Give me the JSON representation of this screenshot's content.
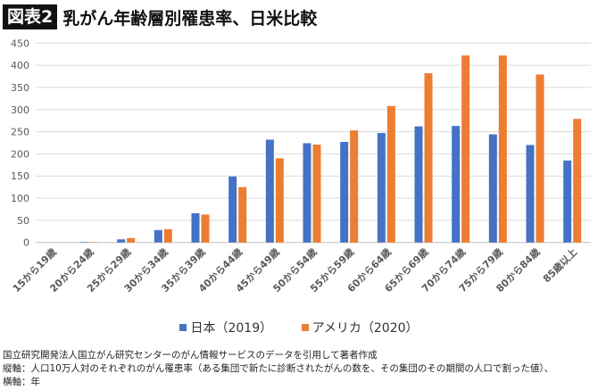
{
  "header": {
    "figure_label": "図表2",
    "title": "乳がん年齢層別罹患率、日米比較"
  },
  "chart_data": {
    "type": "bar",
    "title": "",
    "xlabel": "",
    "ylabel": "",
    "ylim": [
      0,
      450
    ],
    "yticks": [
      0,
      50,
      100,
      150,
      200,
      250,
      300,
      350,
      400,
      450
    ],
    "grid": true,
    "legend_position": "bottom",
    "categories": [
      "15から19歳",
      "20から24歳",
      "25から29歳",
      "30から34歳",
      "35から39歳",
      "40から44歳",
      "45から49歳",
      "50から54歳",
      "55から59歳",
      "60から64歳",
      "65から69歳",
      "70から74歳",
      "75から79歳",
      "80から84歳",
      "85歳以上"
    ],
    "series": [
      {
        "name": "日本（2019）",
        "color": "#4472C4",
        "values": [
          0,
          1,
          7,
          28,
          66,
          149,
          232,
          224,
          227,
          247,
          262,
          263,
          244,
          220,
          185
        ]
      },
      {
        "name": "アメリカ（2020）",
        "color": "#ED7D31",
        "values": [
          0,
          1,
          10,
          30,
          63,
          125,
          190,
          221,
          253,
          308,
          382,
          422,
          422,
          379,
          279
        ]
      }
    ]
  },
  "footer": {
    "source": "国立研究開発法人国立がん研究センターのがん情報サービスのデータを引用して著者作成",
    "note1": "縦軸：人口10万人対のそれぞれのがん罹患率（ある集団で新たに診断されたがんの数を、その集団のその期間の人口で割った値）、",
    "note2": "横軸：年"
  }
}
